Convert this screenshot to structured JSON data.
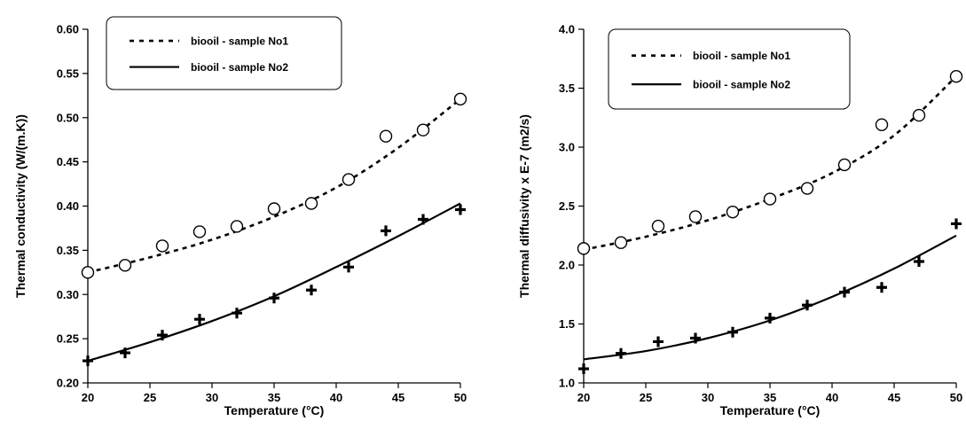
{
  "chart_data": [
    {
      "type": "scatter",
      "xlabel": "Temperature (°C)",
      "ylabel": "Thermal conductivity (W/(m.K))",
      "xlim": [
        20,
        50
      ],
      "ylim": [
        0.2,
        0.6
      ],
      "xticks": [
        20,
        25,
        30,
        35,
        40,
        45,
        50
      ],
      "yticks": [
        0.2,
        0.25,
        0.3,
        0.35,
        0.4,
        0.45,
        0.5,
        0.55,
        0.6
      ],
      "ytick_labels": [
        "0.20",
        "0.25",
        "0.30",
        "0.35",
        "0.40",
        "0.45",
        "0.50",
        "0.55",
        "0.60"
      ],
      "legend_position": "top-left",
      "series": [
        {
          "name": "biooil - sample No1",
          "marker": "circle",
          "line": "dotted",
          "x": [
            20,
            23,
            26,
            29,
            32,
            35,
            38,
            41,
            44,
            47,
            50
          ],
          "y": [
            0.325,
            0.333,
            0.355,
            0.371,
            0.377,
            0.397,
            0.403,
            0.43,
            0.479,
            0.486,
            0.521
          ],
          "fit": [
            [
              20,
              0.325
            ],
            [
              25,
              0.342
            ],
            [
              30,
              0.362
            ],
            [
              35,
              0.388
            ],
            [
              40,
              0.421
            ],
            [
              45,
              0.466
            ],
            [
              50,
              0.521
            ]
          ]
        },
        {
          "name": "biooil - sample No2",
          "marker": "cross",
          "line": "solid",
          "x": [
            20,
            23,
            26,
            29,
            32,
            35,
            38,
            41,
            44,
            47,
            50
          ],
          "y": [
            0.225,
            0.234,
            0.254,
            0.272,
            0.279,
            0.296,
            0.305,
            0.331,
            0.372,
            0.385,
            0.396
          ],
          "fit": [
            [
              20,
              0.225
            ],
            [
              25,
              0.246
            ],
            [
              30,
              0.27
            ],
            [
              35,
              0.298
            ],
            [
              40,
              0.331
            ],
            [
              45,
              0.366
            ],
            [
              50,
              0.403
            ]
          ]
        }
      ]
    },
    {
      "type": "scatter",
      "xlabel": "Temperature (°C)",
      "ylabel": "Thermal diffusivity x E-7 (m2/s)",
      "xlim": [
        20,
        50
      ],
      "ylim": [
        1.0,
        4.0
      ],
      "xticks": [
        20,
        25,
        30,
        35,
        40,
        45,
        50
      ],
      "yticks": [
        1.0,
        1.5,
        2.0,
        2.5,
        3.0,
        3.5,
        4.0
      ],
      "ytick_labels": [
        "1.0",
        "1.5",
        "2.0",
        "2.5",
        "3.0",
        "3.5",
        "4.0"
      ],
      "legend_position": "top-left",
      "series": [
        {
          "name": "biooil - sample No1",
          "marker": "circle",
          "line": "dotted",
          "x": [
            20,
            23,
            26,
            29,
            32,
            35,
            38,
            41,
            44,
            47,
            50
          ],
          "y": [
            2.14,
            2.19,
            2.33,
            2.41,
            2.45,
            2.56,
            2.65,
            2.85,
            3.19,
            3.27,
            3.6
          ],
          "fit": [
            [
              20,
              2.13
            ],
            [
              25,
              2.24
            ],
            [
              30,
              2.38
            ],
            [
              35,
              2.56
            ],
            [
              40,
              2.78
            ],
            [
              45,
              3.1
            ],
            [
              50,
              3.6
            ]
          ]
        },
        {
          "name": "biooil - sample No2",
          "marker": "cross",
          "line": "solid",
          "x": [
            20,
            23,
            26,
            29,
            32,
            35,
            38,
            41,
            44,
            47,
            50
          ],
          "y": [
            1.12,
            1.25,
            1.35,
            1.38,
            1.43,
            1.55,
            1.66,
            1.77,
            1.81,
            2.03,
            2.35
          ],
          "fit": [
            [
              20,
              1.2
            ],
            [
              25,
              1.27
            ],
            [
              30,
              1.38
            ],
            [
              35,
              1.53
            ],
            [
              40,
              1.73
            ],
            [
              45,
              1.97
            ],
            [
              50,
              2.25
            ]
          ]
        }
      ]
    }
  ]
}
